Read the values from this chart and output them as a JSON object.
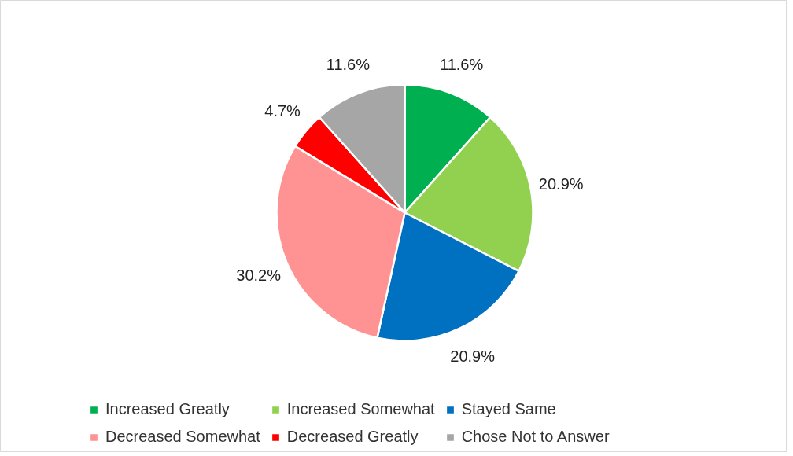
{
  "chart_data": {
    "type": "pie",
    "categories": [
      "Increased Greatly",
      "Increased Somewhat",
      "Stayed Same",
      "Decreased Somewhat",
      "Decreased Greatly",
      "Chose Not to Answer"
    ],
    "values": [
      11.6,
      20.9,
      20.9,
      30.2,
      4.7,
      11.6
    ],
    "colors": [
      "#00b050",
      "#92d050",
      "#0070c0",
      "#ff9393",
      "#ff0000",
      "#a6a6a6"
    ],
    "value_labels": [
      "11.6%",
      "20.9%",
      "20.9%",
      "30.2%",
      "4.7%",
      "11.6%"
    ],
    "legend": "bottom"
  }
}
